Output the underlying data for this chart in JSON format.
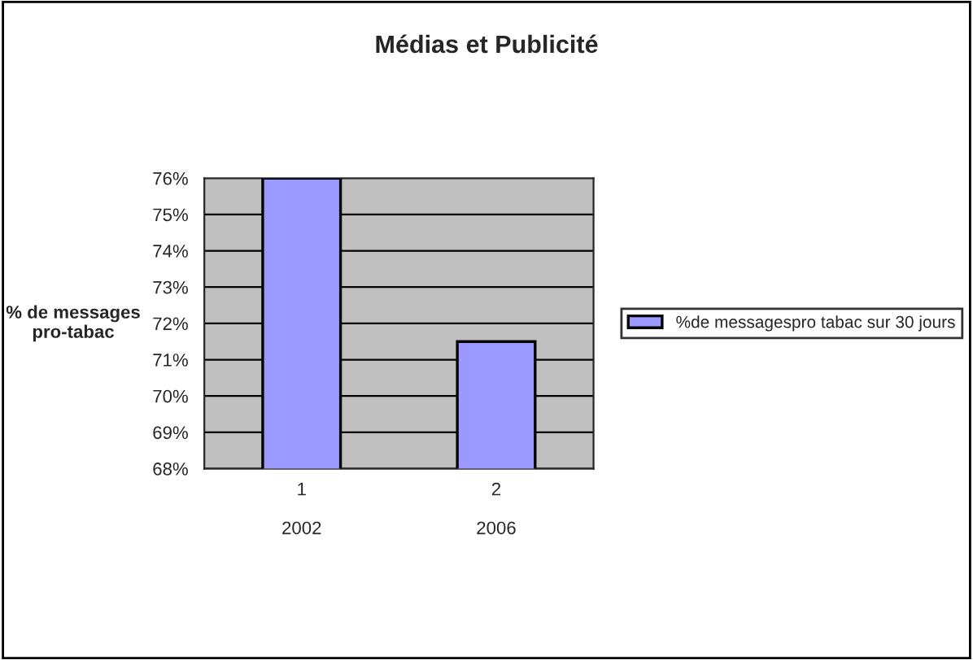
{
  "chart_data": {
    "type": "bar",
    "title": "Médias et Publicité",
    "ylabel": "% de messages\npro-tabac",
    "categories": [
      "1\n\n2002",
      "2\n\n2006"
    ],
    "series": [
      {
        "name": "%de messagespro tabac sur 30 jours",
        "color": "#9999ff",
        "values": [
          76,
          71.5
        ]
      }
    ],
    "ylim": [
      68,
      76
    ],
    "yticks": [
      {
        "value": 68,
        "label": "68%"
      },
      {
        "value": 69,
        "label": "69%"
      },
      {
        "value": 70,
        "label": "70%"
      },
      {
        "value": 71,
        "label": "71%"
      },
      {
        "value": 72,
        "label": "72%"
      },
      {
        "value": 73,
        "label": "73%"
      },
      {
        "value": 74,
        "label": "74%"
      },
      {
        "value": 75,
        "label": "75%"
      },
      {
        "value": 76,
        "label": "76%"
      }
    ],
    "grid": "y",
    "legend": "right"
  }
}
